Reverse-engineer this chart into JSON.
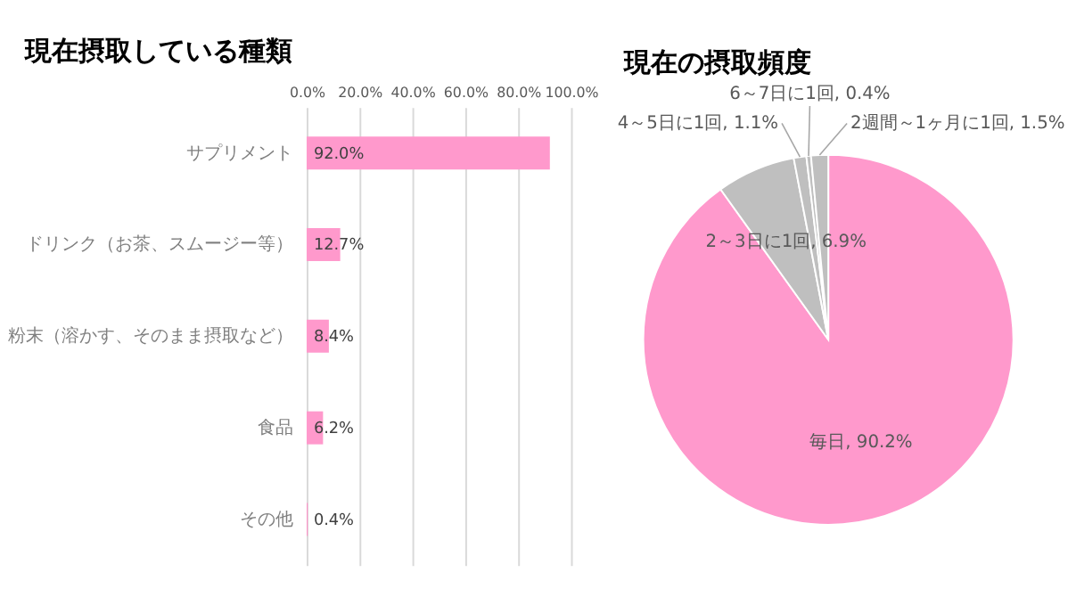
{
  "chart_data": [
    {
      "type": "bar",
      "title": "現在摂取している種類",
      "orientation": "horizontal",
      "categories": [
        "サプリメント",
        "ドリンク（お茶、スムージー等）",
        "粉末（溶かす、そのまま摂取など）",
        "食品",
        "その他"
      ],
      "values": [
        92.0,
        12.7,
        8.4,
        6.2,
        0.4
      ],
      "value_labels": [
        "92.0%",
        "12.7%",
        "8.4%",
        "6.2%",
        "0.4%"
      ],
      "color": "#ff99cc",
      "xlim": [
        0,
        100
      ],
      "xticks": [
        {
          "value": 0,
          "label": "0.0%"
        },
        {
          "value": 20,
          "label": "20.0%"
        },
        {
          "value": 40,
          "label": "40.0%"
        },
        {
          "value": 60,
          "label": "60.0%"
        },
        {
          "value": 80,
          "label": "80.0%"
        },
        {
          "value": 100,
          "label": "100.0%"
        }
      ],
      "grid": "x"
    },
    {
      "type": "pie",
      "title": "現在の摂取頻度",
      "categories": [
        "毎日",
        "2～3日に1回",
        "4～5日に1回",
        "6～7日に1回",
        "2週間～1ヶ月に1回"
      ],
      "values": [
        90.2,
        6.9,
        1.1,
        0.4,
        1.5
      ],
      "value_labels": [
        "90.2%",
        "6.9%",
        "1.1%",
        "0.4%",
        "1.5%"
      ],
      "colors": [
        "#ff99cc",
        "#bfbfbf",
        "#bfbfbf",
        "#bfbfbf",
        "#bfbfbf"
      ]
    }
  ]
}
